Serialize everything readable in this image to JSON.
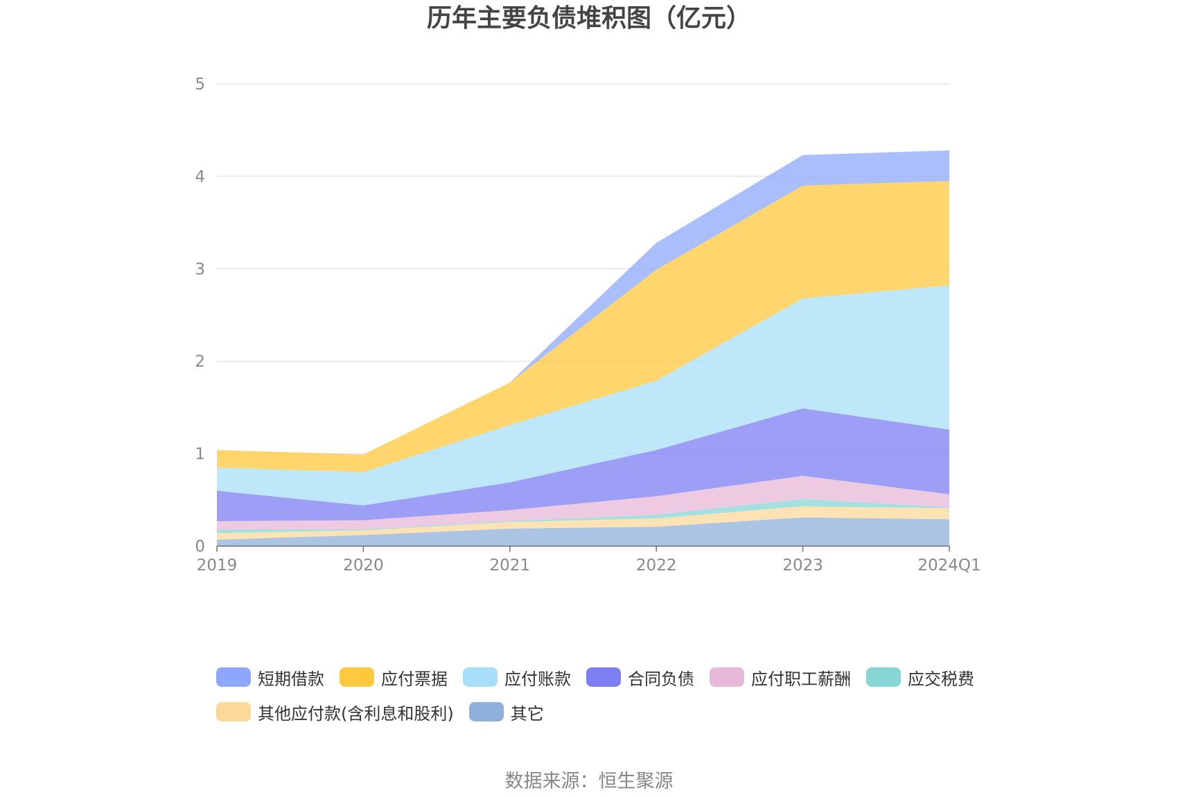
{
  "chart_data": {
    "type": "area",
    "title": "历年主要负债堆积图（亿元）",
    "source": "数据来源：恒生聚源",
    "categories": [
      "2019",
      "2020",
      "2021",
      "2022",
      "2023",
      "2024Q1"
    ],
    "ylim": [
      0,
      5
    ],
    "yticks": [
      "0",
      "1",
      "2",
      "3",
      "4",
      "5"
    ],
    "grid": true,
    "stacked": true,
    "legend_position": "bottom",
    "series": [
      {
        "name": "其它",
        "color": "#8fb0db",
        "values": [
          0.07,
          0.12,
          0.19,
          0.21,
          0.31,
          0.29
        ]
      },
      {
        "name": "其他应付款(含利息和股利)",
        "color": "#fcd89a",
        "values": [
          0.07,
          0.05,
          0.07,
          0.09,
          0.12,
          0.12
        ]
      },
      {
        "name": "应交税费",
        "color": "#86d6d6",
        "values": [
          0.04,
          0.01,
          0.01,
          0.04,
          0.08,
          0.01
        ]
      },
      {
        "name": "应付职工薪酬",
        "color": "#e8b8d8",
        "values": [
          0.09,
          0.1,
          0.12,
          0.2,
          0.25,
          0.14
        ]
      },
      {
        "name": "合同负债",
        "color": "#7b7ff2",
        "values": [
          0.33,
          0.16,
          0.3,
          0.5,
          0.73,
          0.7
        ]
      },
      {
        "name": "应付账款",
        "color": "#a8dff8",
        "values": [
          0.25,
          0.36,
          0.62,
          0.75,
          1.19,
          1.56
        ]
      },
      {
        "name": "应付票据",
        "color": "#ffc83d",
        "values": [
          0.19,
          0.19,
          0.46,
          1.2,
          1.22,
          1.13
        ]
      },
      {
        "name": "短期借款",
        "color": "#8da8fb",
        "values": [
          0.0,
          0.0,
          0.0,
          0.29,
          0.33,
          0.33
        ]
      }
    ]
  },
  "legend": {
    "rows": [
      [
        {
          "label": "短期借款",
          "color": "#8da8fb"
        },
        {
          "label": "应付票据",
          "color": "#ffc83d"
        },
        {
          "label": "应付账款",
          "color": "#a8dff8"
        },
        {
          "label": "合同负债",
          "color": "#7b7ff2"
        },
        {
          "label": "应付职工薪酬",
          "color": "#e8b8d8"
        },
        {
          "label": "应交税费",
          "color": "#86d6d6"
        }
      ],
      [
        {
          "label": "其他应付款(含利息和股利)",
          "color": "#fcd89a"
        },
        {
          "label": "其它",
          "color": "#8fb0db"
        }
      ]
    ]
  }
}
